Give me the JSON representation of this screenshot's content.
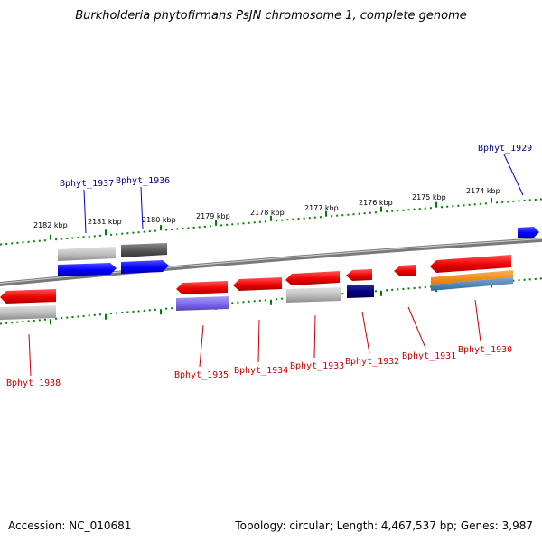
{
  "title": "Burkholderia phytofirmans PsJN chromosome 1, complete genome",
  "footer": {
    "accession": "Accession: NC_010681",
    "summary": "Topology: circular; Length: 4,467,537 bp; Genes: 3,987"
  },
  "colors": {
    "red": "#ff0000",
    "blue": "#0000ff",
    "navy": "#000080",
    "light_gray": "#c0c0c0",
    "dark_gray": "#606060",
    "purple": "#7b68ee",
    "orange": "#ff8c00",
    "steel": "#4682b4",
    "tick_green": "#008000",
    "forward_label": "#00008b",
    "reverse_label": "#cc0000"
  },
  "ruler": {
    "ticks": [
      {
        "label": "2182 kbp"
      },
      {
        "label": "2181 kbp"
      },
      {
        "label": "2180 kbp"
      },
      {
        "label": "2179 kbp"
      },
      {
        "label": "2178 kbp"
      },
      {
        "label": "2177 kbp"
      },
      {
        "label": "2176 kbp"
      },
      {
        "label": "2175 kbp"
      },
      {
        "label": "2174 kbp"
      }
    ]
  },
  "genes": [
    {
      "label": "Bphyt_1929",
      "strand": "forward"
    },
    {
      "label": "Bphyt_1936",
      "strand": "forward"
    },
    {
      "label": "Bphyt_1937",
      "strand": "forward"
    },
    {
      "label": "Bphyt_1938",
      "strand": "reverse"
    },
    {
      "label": "Bphyt_1935",
      "strand": "reverse"
    },
    {
      "label": "Bphyt_1934",
      "strand": "reverse"
    },
    {
      "label": "Bphyt_1933",
      "strand": "reverse"
    },
    {
      "label": "Bphyt_1932",
      "strand": "reverse"
    },
    {
      "label": "Bphyt_1931",
      "strand": "reverse"
    },
    {
      "label": "Bphyt_1930",
      "strand": "reverse"
    }
  ]
}
